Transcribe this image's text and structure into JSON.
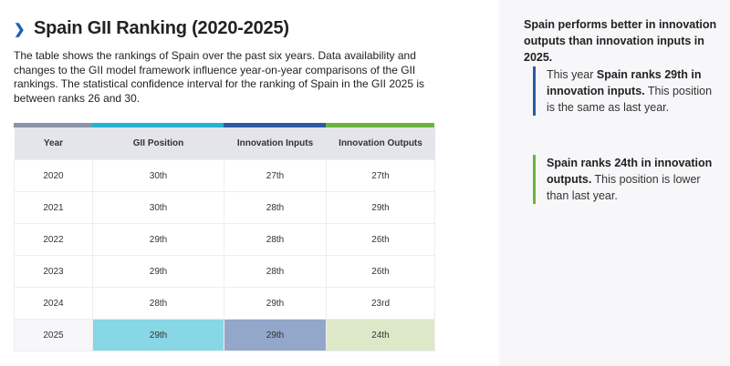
{
  "header": {
    "chevron_icon": "chevron-right-icon",
    "title": "Spain GII Ranking (2020-2025)"
  },
  "description": "The table shows the rankings of Spain over the past six years. Data availability and changes to the GII model framework influence year-on-year comparisons of the GII rankings. The statistical confidence interval for the ranking of Spain in the GII 2025 is between ranks 26 and 30.",
  "colors": {
    "year": "#8a93aa",
    "gii": "#27b2d1",
    "inputs": "#2d5aa5",
    "outputs": "#6db33f",
    "gii_highlight": "#87d7e6",
    "inputs_highlight": "#93a7ca",
    "outputs_highlight": "#dde8c9"
  },
  "table": {
    "columns": [
      "Year",
      "GII Position",
      "Innovation Inputs",
      "Innovation Outputs"
    ],
    "rows": [
      [
        "2020",
        "30th",
        "27th",
        "27th"
      ],
      [
        "2021",
        "30th",
        "28th",
        "29th"
      ],
      [
        "2022",
        "29th",
        "28th",
        "26th"
      ],
      [
        "2023",
        "29th",
        "28th",
        "26th"
      ],
      [
        "2024",
        "28th",
        "29th",
        "23rd"
      ],
      [
        "2025",
        "29th",
        "29th",
        "24th"
      ]
    ]
  },
  "sidebar": {
    "heading": "Spain performs better in innovation outputs than innovation inputs in 2025.",
    "inputs_note": {
      "prefix": "This year ",
      "bold": "Spain ranks 29th in innovation inputs.",
      "suffix": " This position is the same as last year."
    },
    "outputs_note": {
      "bold": "Spain ranks 24th in innovation outputs.",
      "suffix": " This position is lower than last year."
    }
  }
}
